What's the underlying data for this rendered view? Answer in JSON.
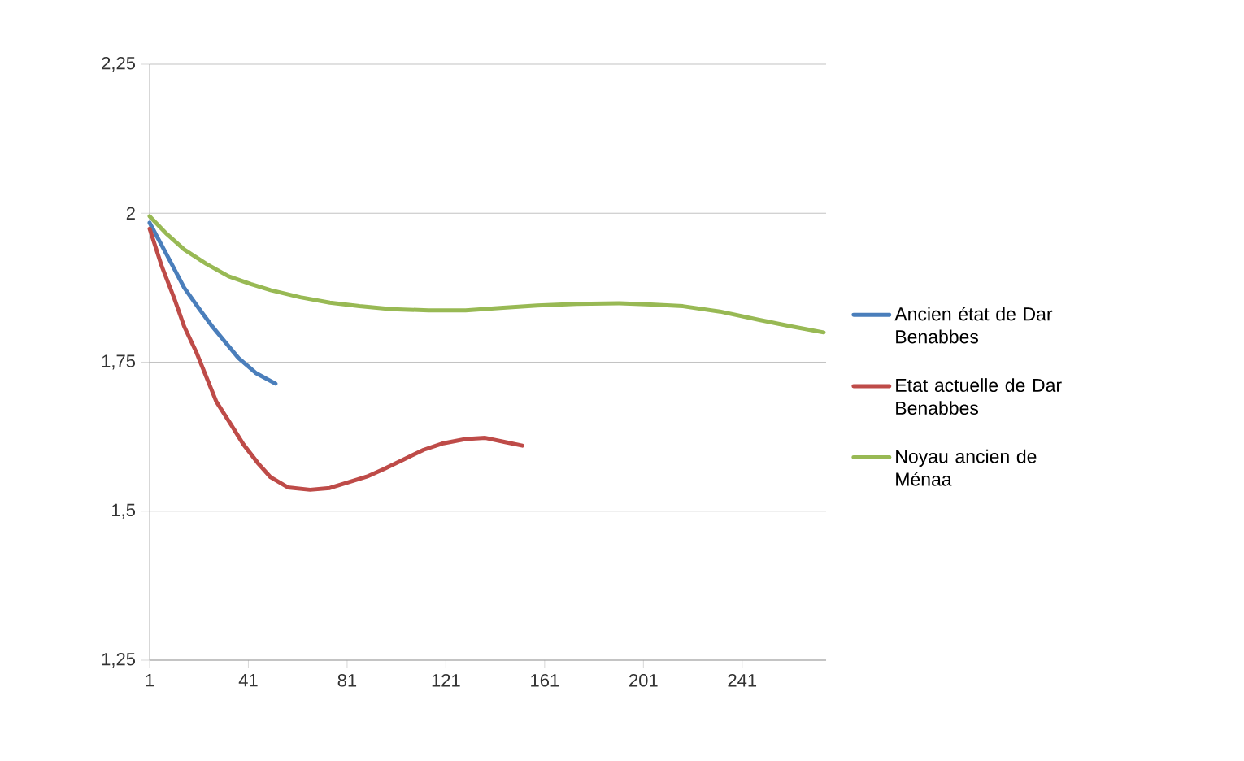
{
  "chart_data": {
    "type": "line",
    "xlim": [
      1,
      275
    ],
    "xticks": [
      1,
      41,
      81,
      121,
      161,
      201,
      241
    ],
    "ylim": [
      1.25,
      2.25
    ],
    "yticks": [
      {
        "value": 1.25,
        "label": "1,25"
      },
      {
        "value": 1.5,
        "label": "1,5"
      },
      {
        "value": 1.75,
        "label": "1,75"
      },
      2,
      {
        "value": 2.25,
        "label": "2,25"
      }
    ],
    "grid": "y",
    "legend": "right",
    "marker": "none",
    "line_style": "solid",
    "series": [
      {
        "name": "Ancien état de Dar Benabbes",
        "color": "#4a7ebb",
        "x": [
          1,
          8,
          15,
          21,
          26,
          32,
          37,
          44,
          52
        ],
        "values": [
          1.984,
          1.93,
          1.875,
          1.84,
          1.812,
          1.782,
          1.757,
          1.732,
          1.714
        ]
      },
      {
        "name": "Etat actuelle de Dar Benabbes",
        "color": "#be4b48",
        "x": [
          1,
          6,
          11,
          15,
          20,
          28,
          34,
          39,
          45,
          50,
          57,
          66,
          74,
          81,
          89,
          96,
          104,
          112,
          120,
          129,
          137,
          145,
          152
        ],
        "values": [
          1.974,
          1.91,
          1.857,
          1.81,
          1.766,
          1.684,
          1.645,
          1.612,
          1.58,
          1.557,
          1.54,
          1.536,
          1.539,
          1.548,
          1.558,
          1.571,
          1.587,
          1.603,
          1.614,
          1.621,
          1.623,
          1.616,
          1.61
        ]
      },
      {
        "name": "Noyau ancien de Ménaa",
        "color": "#98b954",
        "x": [
          1,
          8,
          15,
          24,
          33,
          42,
          50,
          62,
          74,
          86,
          99,
          114,
          129,
          143,
          158,
          174,
          191,
          204,
          217,
          232,
          248,
          261,
          274
        ],
        "values": [
          1.995,
          1.965,
          1.939,
          1.915,
          1.894,
          1.881,
          1.871,
          1.859,
          1.85,
          1.844,
          1.839,
          1.837,
          1.837,
          1.841,
          1.845,
          1.848,
          1.849,
          1.847,
          1.844,
          1.835,
          1.821,
          1.81,
          1.8
        ]
      }
    ]
  }
}
